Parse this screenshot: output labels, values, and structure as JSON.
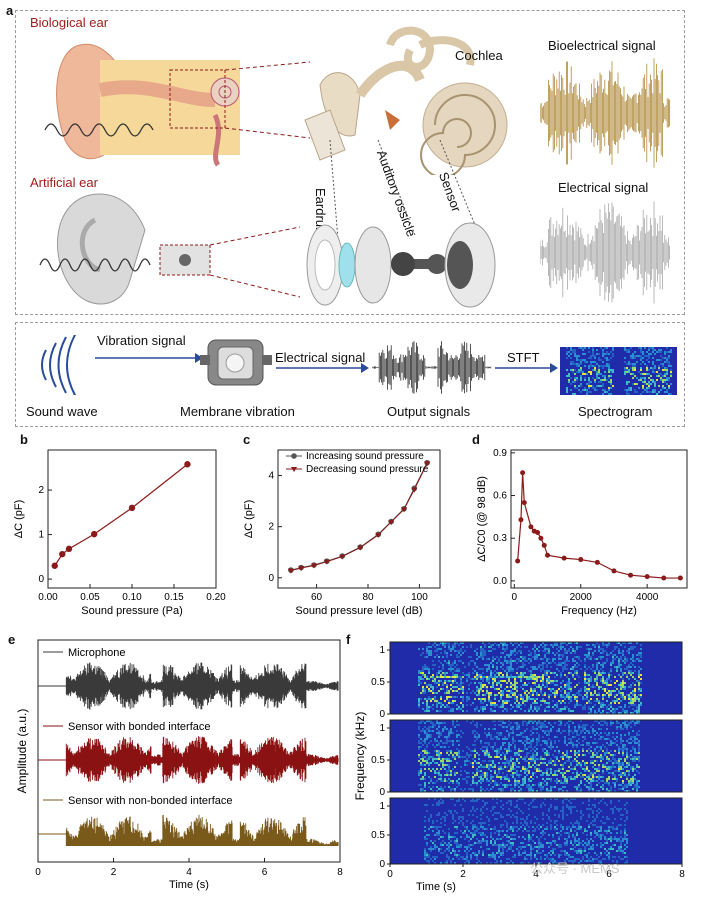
{
  "panel_a": {
    "letter": "a",
    "biological_ear": "Biological ear",
    "artificial_ear": "Artificial ear",
    "cochlea": "Cochlea",
    "eardrum": "Eardrum",
    "ossicle": "Auditory ossicle",
    "sensor": "Sensor",
    "bio_signal": "Bioelectrical signal",
    "elec_signal": "Electrical signal",
    "flow": {
      "vibration_signal": "Vibration signal",
      "electrical_signal": "Electrical signal",
      "stft": "STFT",
      "sound_wave": "Sound wave",
      "membrane_vibration": "Membrane vibration",
      "output_signals": "Output signals",
      "spectrogram": "Spectrogram"
    },
    "colors": {
      "bio": "#b08a3a",
      "elec": "#a8a8a8",
      "label_red": "#a11c1c"
    }
  },
  "chart_data": [
    {
      "panel": "b",
      "type": "line",
      "xlabel": "Sound pressure (Pa)",
      "ylabel": "ΔC (pF)",
      "xlim": [
        0,
        0.2
      ],
      "ylim": [
        -0.2,
        2.9
      ],
      "xticks": [
        "0.00",
        "0.05",
        "0.10",
        "0.15",
        "0.20"
      ],
      "yticks": [
        "0",
        "1",
        "2"
      ],
      "x": [
        0.008,
        0.017,
        0.025,
        0.055,
        0.1,
        0.166
      ],
      "values": [
        0.3,
        0.56,
        0.68,
        1.01,
        1.6,
        2.58
      ],
      "color": "#8b1a1a"
    },
    {
      "panel": "c",
      "type": "line",
      "xlabel": "Sound pressure level (dB)",
      "ylabel": "ΔC (pF)",
      "xlim": [
        45,
        108
      ],
      "ylim": [
        -0.4,
        5.0
      ],
      "xticks": [
        "60",
        "80",
        "100"
      ],
      "yticks": [
        "0",
        "2",
        "4"
      ],
      "series": [
        {
          "name": "Increasing sound pressure",
          "x": [
            50,
            54,
            59,
            64,
            70,
            77,
            84,
            89,
            94,
            98,
            103
          ],
          "values": [
            0.3,
            0.4,
            0.5,
            0.65,
            0.85,
            1.2,
            1.7,
            2.2,
            2.7,
            3.5,
            4.5
          ],
          "color": "#555555"
        },
        {
          "name": "Decreasing sound pressure",
          "x": [
            50,
            54,
            59,
            64,
            70,
            77,
            84,
            89,
            94,
            98,
            103
          ],
          "values": [
            0.28,
            0.38,
            0.48,
            0.63,
            0.83,
            1.18,
            1.68,
            2.18,
            2.68,
            3.45,
            4.48
          ],
          "color": "#8b1a1a"
        }
      ]
    },
    {
      "panel": "d",
      "type": "line",
      "xlabel": "Frequency (Hz)",
      "ylabel": "ΔC/C0 (@ 98 dB)",
      "xlim": [
        -100,
        5200
      ],
      "ylim": [
        -0.05,
        0.92
      ],
      "xticks": [
        "0",
        "2000",
        "4000"
      ],
      "yticks": [
        "0.0",
        "0.3",
        "0.6",
        "0.9"
      ],
      "x": [
        100,
        200,
        250,
        300,
        500,
        600,
        700,
        800,
        900,
        1000,
        1500,
        2000,
        2500,
        3000,
        3500,
        4000,
        4500,
        5000
      ],
      "values": [
        0.14,
        0.43,
        0.76,
        0.55,
        0.38,
        0.35,
        0.34,
        0.3,
        0.25,
        0.18,
        0.16,
        0.15,
        0.13,
        0.07,
        0.04,
        0.03,
        0.02,
        0.02
      ],
      "color": "#8b1a1a"
    },
    {
      "panel": "e",
      "type": "line",
      "xlabel": "Time (s)",
      "ylabel": "Amplitude (a.u.)",
      "xlim": [
        0,
        8
      ],
      "xticks": [
        "0",
        "2",
        "4",
        "6",
        "8"
      ],
      "series": [
        {
          "name": "Microphone",
          "color": "#3a3a3a"
        },
        {
          "name": "Sensor with bonded interface",
          "color": "#8b1212"
        },
        {
          "name": "Sensor with non-bonded interface",
          "color": "#7a5a1a"
        }
      ]
    },
    {
      "panel": "f",
      "type": "heatmap",
      "xlabel": "Time (s)",
      "ylabel": "Frequency (kHz)",
      "xlim": [
        0,
        8
      ],
      "xticks": [
        "0",
        "2",
        "4",
        "6",
        "8"
      ],
      "yticks": [
        "0",
        "0.5",
        "1"
      ],
      "colormap": [
        "#1f2ba8",
        "#2a7fd0",
        "#3fc0c0",
        "#e6e63a"
      ]
    }
  ],
  "letters": {
    "b": "b",
    "c": "c",
    "d": "d",
    "e": "e",
    "f": "f"
  },
  "watermark": "公众号 · MEMS"
}
